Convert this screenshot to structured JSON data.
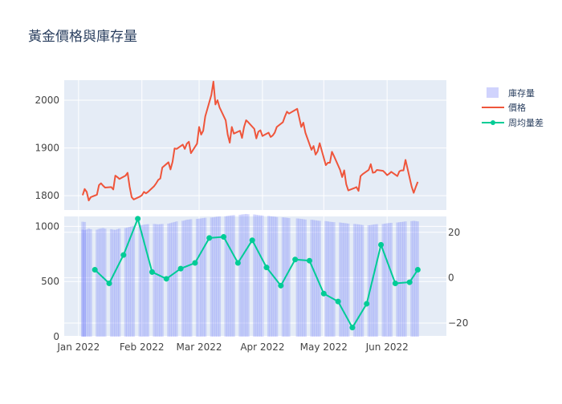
{
  "chart_data": {
    "type": "line",
    "title": "黃金價格與庫存量",
    "x_tick_labels": [
      "Jan 2022",
      "Feb 2022",
      "Mar 2022",
      "Apr 2022",
      "May 2022",
      "Jun 2022"
    ],
    "x_tick_dates": [
      "2022-01-01",
      "2022-02-01",
      "2022-03-01",
      "2022-04-01",
      "2022-05-01",
      "2022-06-01"
    ],
    "xlim": [
      "2021-12-25",
      "2022-06-30"
    ],
    "legend_placement": "top-right",
    "colors": {
      "inventory": "#636efa",
      "price": "#ef553b",
      "weekly_diff": "#00cc96",
      "plot_bg": "#e5ecf6",
      "grid": "#ffffff",
      "text": "#2a3f5f",
      "tick_text": "#444444"
    },
    "panels": [
      {
        "id": "top",
        "ylim": [
          1770,
          2042
        ],
        "yticks": [
          1800,
          1900,
          2000
        ],
        "series": [
          {
            "name": "價格",
            "type": "line",
            "color": "#ef553b",
            "points": [
              [
                "2022-01-03",
                1801
              ],
              [
                "2022-01-04",
                1814
              ],
              [
                "2022-01-05",
                1808
              ],
              [
                "2022-01-06",
                1790
              ],
              [
                "2022-01-07",
                1797
              ],
              [
                "2022-01-10",
                1802
              ],
              [
                "2022-01-11",
                1822
              ],
              [
                "2022-01-12",
                1826
              ],
              [
                "2022-01-13",
                1821
              ],
              [
                "2022-01-14",
                1817
              ],
              [
                "2022-01-17",
                1818
              ],
              [
                "2022-01-18",
                1813
              ],
              [
                "2022-01-19",
                1842
              ],
              [
                "2022-01-20",
                1839
              ],
              [
                "2022-01-21",
                1835
              ],
              [
                "2022-01-24",
                1842
              ],
              [
                "2022-01-25",
                1848
              ],
              [
                "2022-01-26",
                1819
              ],
              [
                "2022-01-27",
                1797
              ],
              [
                "2022-01-28",
                1792
              ],
              [
                "2022-01-31",
                1798
              ],
              [
                "2022-02-01",
                1801
              ],
              [
                "2022-02-02",
                1808
              ],
              [
                "2022-02-03",
                1805
              ],
              [
                "2022-02-04",
                1808
              ],
              [
                "2022-02-07",
                1820
              ],
              [
                "2022-02-08",
                1826
              ],
              [
                "2022-02-09",
                1833
              ],
              [
                "2022-02-10",
                1836
              ],
              [
                "2022-02-11",
                1859
              ],
              [
                "2022-02-14",
                1870
              ],
              [
                "2022-02-15",
                1855
              ],
              [
                "2022-02-16",
                1871
              ],
              [
                "2022-02-17",
                1899
              ],
              [
                "2022-02-18",
                1898
              ],
              [
                "2022-02-21",
                1907
              ],
              [
                "2022-02-22",
                1898
              ],
              [
                "2022-02-23",
                1909
              ],
              [
                "2022-02-24",
                1913
              ],
              [
                "2022-02-25",
                1889
              ],
              [
                "2022-02-28",
                1909
              ],
              [
                "2022-03-01",
                1944
              ],
              [
                "2022-03-02",
                1928
              ],
              [
                "2022-03-03",
                1936
              ],
              [
                "2022-03-04",
                1966
              ],
              [
                "2022-03-07",
                2011
              ],
              [
                "2022-03-08",
                2039
              ],
              [
                "2022-03-09",
                1991
              ],
              [
                "2022-03-10",
                2000
              ],
              [
                "2022-03-11",
                1985
              ],
              [
                "2022-03-14",
                1958
              ],
              [
                "2022-03-15",
                1928
              ],
              [
                "2022-03-16",
                1911
              ],
              [
                "2022-03-17",
                1944
              ],
              [
                "2022-03-18",
                1930
              ],
              [
                "2022-03-21",
                1936
              ],
              [
                "2022-03-22",
                1921
              ],
              [
                "2022-03-23",
                1944
              ],
              [
                "2022-03-24",
                1958
              ],
              [
                "2022-03-25",
                1954
              ],
              [
                "2022-03-28",
                1940
              ],
              [
                "2022-03-29",
                1920
              ],
              [
                "2022-03-30",
                1934
              ],
              [
                "2022-03-31",
                1937
              ],
              [
                "2022-04-01",
                1925
              ],
              [
                "2022-04-04",
                1932
              ],
              [
                "2022-04-05",
                1923
              ],
              [
                "2022-04-06",
                1926
              ],
              [
                "2022-04-07",
                1932
              ],
              [
                "2022-04-08",
                1944
              ],
              [
                "2022-04-11",
                1954
              ],
              [
                "2022-04-12",
                1966
              ],
              [
                "2022-04-13",
                1976
              ],
              [
                "2022-04-14",
                1972
              ],
              [
                "2022-04-18",
                1982
              ],
              [
                "2022-04-19",
                1963
              ],
              [
                "2022-04-20",
                1944
              ],
              [
                "2022-04-21",
                1953
              ],
              [
                "2022-04-22",
                1932
              ],
              [
                "2022-04-25",
                1896
              ],
              [
                "2022-04-26",
                1904
              ],
              [
                "2022-04-27",
                1886
              ],
              [
                "2022-04-28",
                1893
              ],
              [
                "2022-04-29",
                1910
              ],
              [
                "2022-05-02",
                1864
              ],
              [
                "2022-05-03",
                1869
              ],
              [
                "2022-05-04",
                1869
              ],
              [
                "2022-05-05",
                1892
              ],
              [
                "2022-05-06",
                1883
              ],
              [
                "2022-05-09",
                1854
              ],
              [
                "2022-05-10",
                1839
              ],
              [
                "2022-05-11",
                1853
              ],
              [
                "2022-05-12",
                1824
              ],
              [
                "2022-05-13",
                1811
              ],
              [
                "2022-05-16",
                1816
              ],
              [
                "2022-05-17",
                1818
              ],
              [
                "2022-05-18",
                1810
              ],
              [
                "2022-05-19",
                1841
              ],
              [
                "2022-05-20",
                1845
              ],
              [
                "2022-05-23",
                1854
              ],
              [
                "2022-05-24",
                1866
              ],
              [
                "2022-05-25",
                1848
              ],
              [
                "2022-05-26",
                1849
              ],
              [
                "2022-05-27",
                1854
              ],
              [
                "2022-05-30",
                1852
              ],
              [
                "2022-05-31",
                1848
              ],
              [
                "2022-06-01",
                1843
              ],
              [
                "2022-06-02",
                1846
              ],
              [
                "2022-06-03",
                1850
              ],
              [
                "2022-06-06",
                1841
              ],
              [
                "2022-06-07",
                1851
              ],
              [
                "2022-06-08",
                1853
              ],
              [
                "2022-06-09",
                1853
              ],
              [
                "2022-06-10",
                1875
              ],
              [
                "2022-06-13",
                1819
              ],
              [
                "2022-06-14",
                1806
              ],
              [
                "2022-06-15",
                1818
              ],
              [
                "2022-06-16",
                1829
              ]
            ]
          }
        ]
      },
      {
        "id": "bottom",
        "ylim": [
          0,
          1090
        ],
        "yticks": [
          0,
          500,
          1000
        ],
        "y2lim": [
          -26,
          27
        ],
        "y2ticks": [
          -20,
          0,
          20
        ],
        "series": [
          {
            "name": "庫存量",
            "type": "bar",
            "axis": "y",
            "color": "#636efa",
            "opacity": 0.25,
            "values": [
              970,
              965,
              972,
              980,
              975,
              970,
              978,
              982,
              985,
              980,
              975,
              970,
              968,
              975,
              980,
              985,
              990,
              995,
              1000,
              1005,
              1010,
              1012,
              1015,
              1018,
              1020,
              1022,
              1020,
              1018,
              1020,
              1022,
              1025,
              1030,
              1035,
              1040,
              1045,
              1050,
              1055,
              1060,
              1062,
              1065,
              1068,
              1070,
              1072,
              1075,
              1078,
              1080,
              1082,
              1085,
              1088,
              1090,
              1092,
              1095,
              1098,
              1100,
              1102,
              1105,
              1108,
              1110,
              1112,
              1110,
              1108,
              1105,
              1102,
              1100,
              1098,
              1095,
              1092,
              1090,
              1088,
              1085,
              1082,
              1080,
              1078,
              1075,
              1072,
              1070,
              1068,
              1065,
              1062,
              1060,
              1058,
              1055,
              1052,
              1050,
              1048,
              1045,
              1042,
              1040,
              1038,
              1035,
              1032,
              1030,
              1028,
              1025,
              1022,
              1020,
              1018,
              1015,
              1012,
              1010,
              1012,
              1015,
              1018,
              1020,
              1022,
              1025,
              1028,
              1030,
              1032,
              1035,
              1038,
              1040,
              1042,
              1045,
              1048,
              1050,
              1048,
              1045,
              1042,
              1040
            ]
          },
          {
            "name": "周均量差",
            "type": "line+markers",
            "axis": "y2",
            "color": "#00cc96",
            "points": [
              [
                "2022-01-09",
                3.5
              ],
              [
                "2022-01-16",
                -2.5
              ],
              [
                "2022-01-23",
                10
              ],
              [
                "2022-01-30",
                26
              ],
              [
                "2022-02-06",
                2.5
              ],
              [
                "2022-02-13",
                -0.5
              ],
              [
                "2022-02-20",
                4
              ],
              [
                "2022-02-27",
                6.5
              ],
              [
                "2022-03-06",
                17.5
              ],
              [
                "2022-03-13",
                18
              ],
              [
                "2022-03-20",
                6.5
              ],
              [
                "2022-03-27",
                16.5
              ],
              [
                "2022-04-03",
                4.5
              ],
              [
                "2022-04-10",
                -3.5
              ],
              [
                "2022-04-17",
                8
              ],
              [
                "2022-04-24",
                7.5
              ],
              [
                "2022-05-01",
                -7
              ],
              [
                "2022-05-08",
                -10.5
              ],
              [
                "2022-05-15",
                -22
              ],
              [
                "2022-05-22",
                -11.5
              ],
              [
                "2022-05-29",
                14.5
              ],
              [
                "2022-06-05",
                -2.5
              ],
              [
                "2022-06-12",
                -2
              ],
              [
                "2022-06-16",
                3.5
              ]
            ]
          }
        ]
      }
    ]
  }
}
